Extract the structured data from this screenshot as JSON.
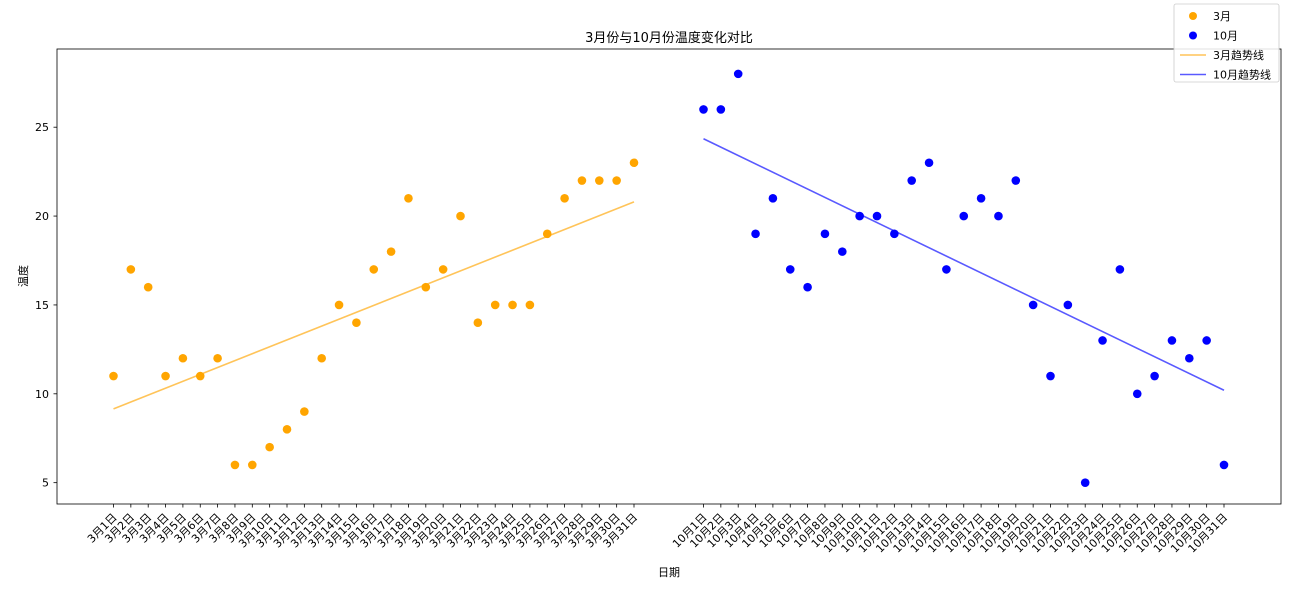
{
  "chart_data": {
    "type": "scatter",
    "title": "3月份与10月份温度变化对比",
    "xlabel": "日期",
    "ylabel": "温度",
    "ylim": [
      3.8,
      29.4
    ],
    "yticks": [
      5,
      10,
      15,
      20,
      25
    ],
    "grid": false,
    "legend_position": "top-right",
    "series": [
      {
        "name": "3月",
        "kind": "scatter",
        "color": "#FFA500",
        "x": [
          "3月1日",
          "3月2日",
          "3月3日",
          "3月4日",
          "3月5日",
          "3月6日",
          "3月7日",
          "3月8日",
          "3月9日",
          "3月10日",
          "3月11日",
          "3月12日",
          "3月13日",
          "3月14日",
          "3月15日",
          "3月16日",
          "3月17日",
          "3月18日",
          "3月19日",
          "3月20日",
          "3月21日",
          "3月22日",
          "3月23日",
          "3月24日",
          "3月25日",
          "3月26日",
          "3月27日",
          "3月28日",
          "3月29日",
          "3月30日",
          "3月31日"
        ],
        "values": [
          11,
          17,
          16,
          11,
          12,
          11,
          12,
          6,
          6,
          7,
          8,
          9,
          12,
          15,
          14,
          17,
          18,
          21,
          16,
          17,
          20,
          14,
          15,
          15,
          15,
          19,
          21,
          22,
          22,
          22,
          23
        ]
      },
      {
        "name": "10月",
        "kind": "scatter",
        "color": "#0000FF",
        "x": [
          "10月1日",
          "10月2日",
          "10月3日",
          "10月4日",
          "10月5日",
          "10月6日",
          "10月7日",
          "10月8日",
          "10月9日",
          "10月10日",
          "10月11日",
          "10月12日",
          "10月13日",
          "10月14日",
          "10月15日",
          "10月16日",
          "10月17日",
          "10月18日",
          "10月19日",
          "10月20日",
          "10月21日",
          "10月22日",
          "10月23日",
          "10月24日",
          "10月25日",
          "10月26日",
          "10月27日",
          "10月28日",
          "10月29日",
          "10月30日",
          "10月31日"
        ],
        "values": [
          26,
          26,
          28,
          19,
          21,
          17,
          16,
          19,
          18,
          20,
          20,
          19,
          22,
          23,
          17,
          20,
          21,
          20,
          22,
          15,
          11,
          15,
          5,
          13,
          17,
          10,
          11,
          13,
          12,
          13,
          6
        ]
      },
      {
        "name": "3月趋势线",
        "kind": "line",
        "color": "#FFA500",
        "x": [
          "3月1日",
          "3月31日"
        ],
        "values": [
          9.15,
          20.8
        ]
      },
      {
        "name": "10月趋势线",
        "kind": "line",
        "color": "#0000FF",
        "x": [
          "10月1日",
          "10月31日"
        ],
        "values": [
          24.35,
          10.2
        ]
      }
    ]
  }
}
